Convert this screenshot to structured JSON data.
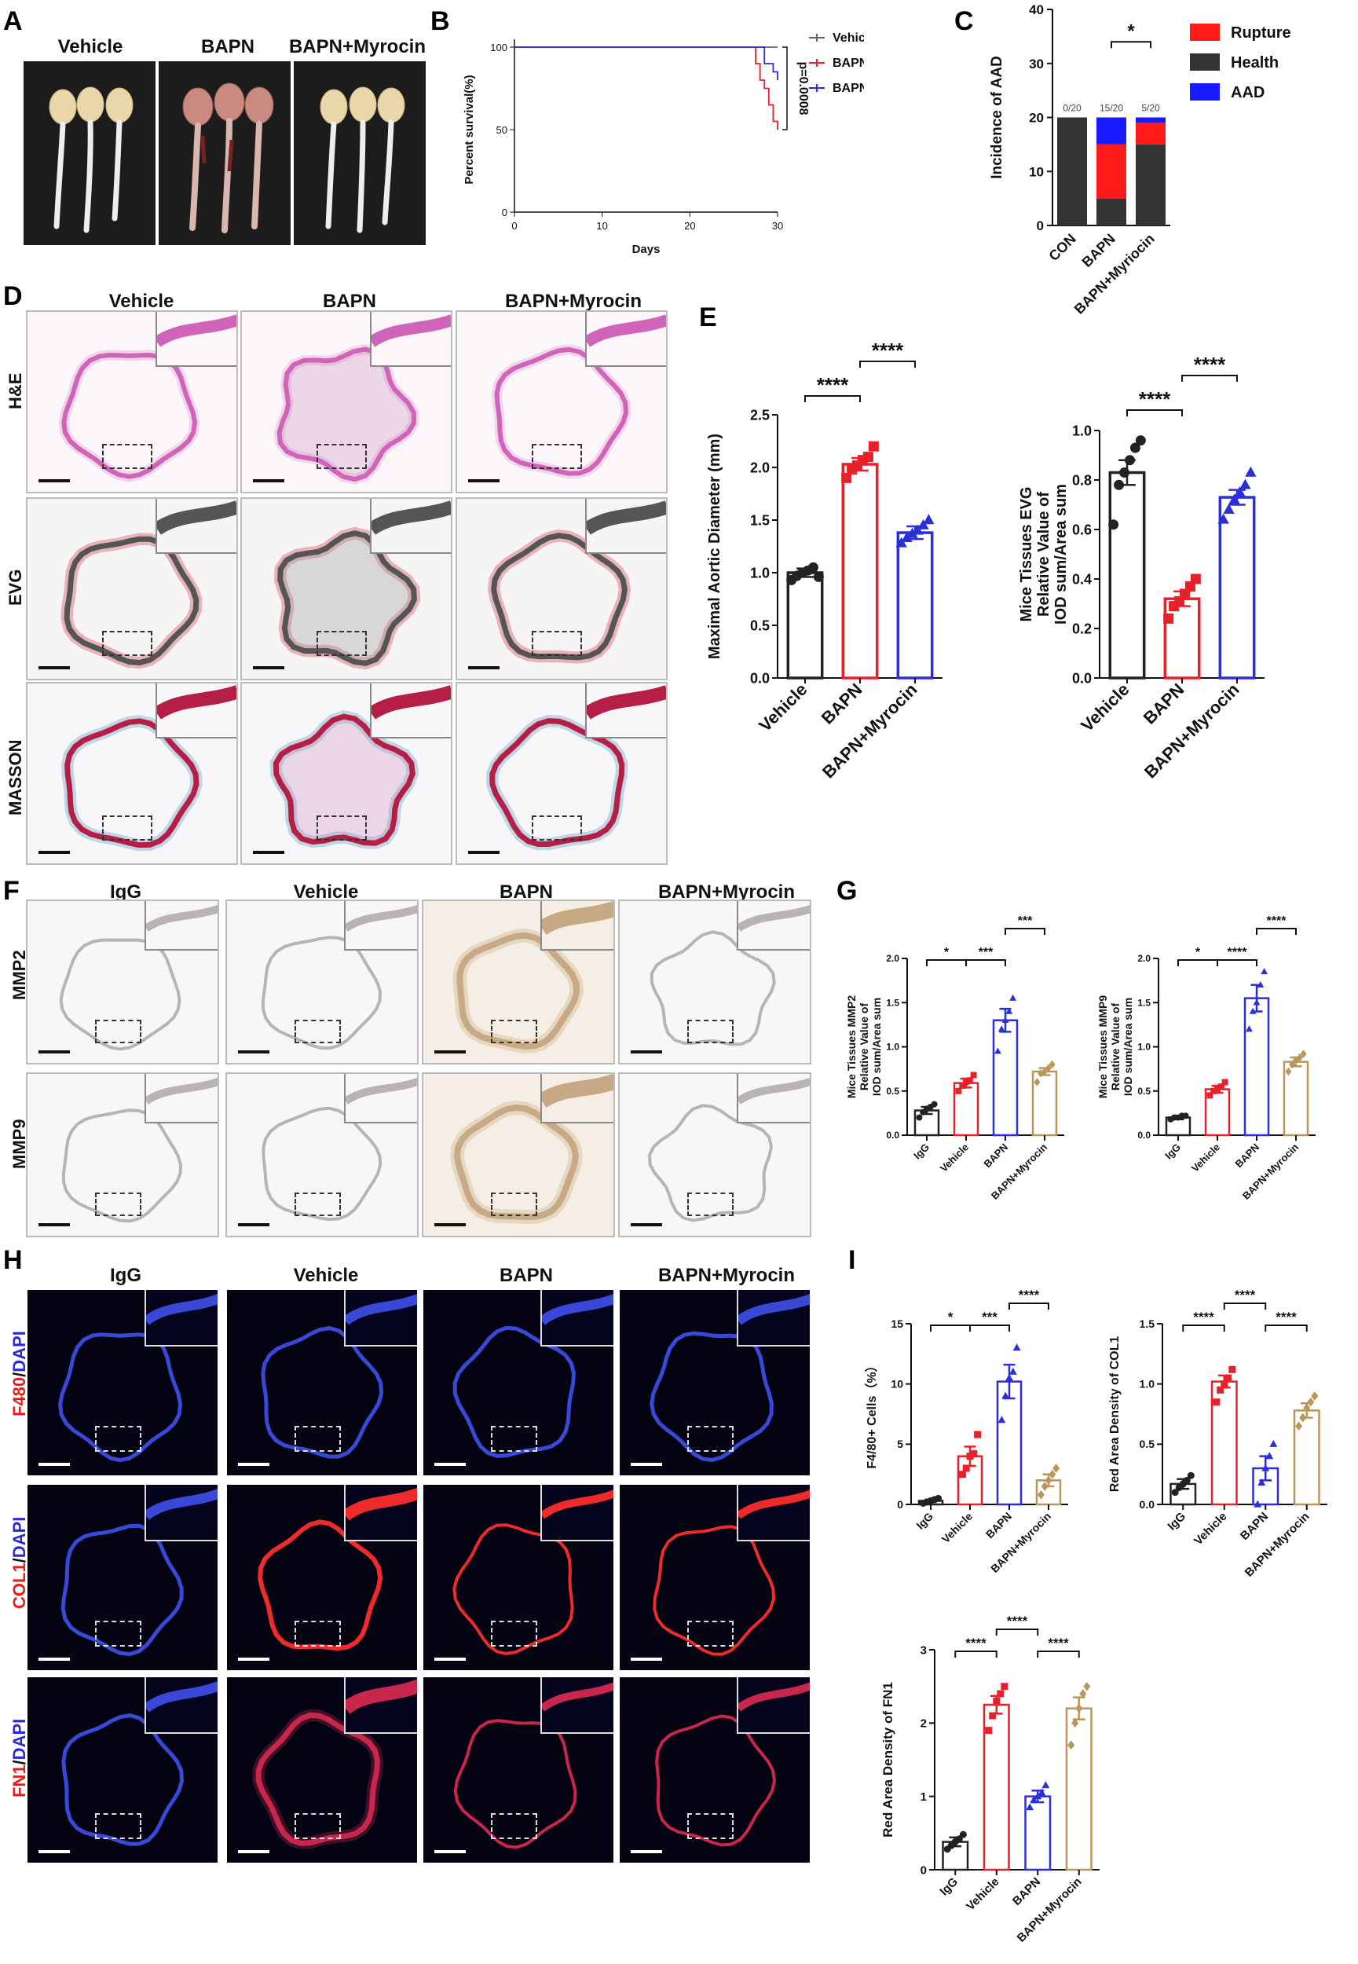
{
  "labels": {
    "A": "A",
    "B": "B",
    "C": "C",
    "D": "D",
    "E": "E",
    "F": "F",
    "G": "G",
    "H": "H",
    "I": "I"
  },
  "colors": {
    "vehicle": "#e8202a",
    "bapn": "#2b2fd6",
    "myrocin": "#b9965a",
    "igg": "#222222",
    "rupture": "#ff1a1a",
    "health": "#333333",
    "aad": "#1a1aff"
  },
  "panelA": {
    "groups": [
      "Vehicle",
      "BAPN",
      "BAPN+Myrocin"
    ]
  },
  "panelD": {
    "columns": [
      "Vehicle",
      "BAPN",
      "BAPN+Myrocin"
    ],
    "rows": [
      "H&E",
      "EVG",
      "MASSON"
    ]
  },
  "panelF": {
    "columns": [
      "IgG",
      "Vehicle",
      "BAPN",
      "BAPN+Myrocin"
    ],
    "rows": [
      "MMP2",
      "MMP9"
    ]
  },
  "panelH": {
    "columns": [
      "IgG",
      "Vehicle",
      "BAPN",
      "BAPN+Myrocin"
    ],
    "rows": [
      {
        "marker": "F480",
        "sep": "/",
        "dapi": "DAPI"
      },
      {
        "marker": "COL1",
        "sep": "/",
        "dapi": "DAPI"
      },
      {
        "marker": "FN1",
        "sep": "/",
        "dapi": "DAPI"
      }
    ]
  },
  "chart_data": [
    {
      "id": "B",
      "type": "line",
      "xlabel": "Days",
      "ylabel": "Percent survival(%)",
      "xlim": [
        0,
        30
      ],
      "ylim": [
        0,
        100
      ],
      "xticks": [
        0,
        10,
        20,
        30
      ],
      "yticks": [
        0,
        50,
        100
      ],
      "series": [
        {
          "name": "Vehicle",
          "color": "#666666",
          "x": [
            0,
            30
          ],
          "y": [
            100,
            100
          ]
        },
        {
          "name": "BAPN",
          "color": "#e8202a",
          "x": [
            0,
            27,
            27.5,
            28,
            28.5,
            29,
            29.5,
            30
          ],
          "y": [
            100,
            100,
            90,
            80,
            75,
            65,
            55,
            50
          ]
        },
        {
          "name": "BAPN+Myrocin",
          "color": "#2b2fd6",
          "x": [
            0,
            28,
            28.5,
            29.5,
            30
          ],
          "y": [
            100,
            100,
            90,
            85,
            80
          ]
        }
      ],
      "annotation": "p=0.0008"
    },
    {
      "id": "C",
      "type": "bar",
      "stacked": true,
      "ylabel": "Incidence of AAD",
      "ylim": [
        0,
        40
      ],
      "yticks": [
        0,
        10,
        20,
        30,
        40
      ],
      "categories": [
        "CON",
        "BAPN",
        "BAPN+Myriocin"
      ],
      "series": [
        {
          "name": "Health",
          "color": "#333333",
          "values": [
            20,
            5,
            15
          ]
        },
        {
          "name": "Rupture",
          "color": "#ff1a1a",
          "values": [
            0,
            10,
            4
          ]
        },
        {
          "name": "AAD",
          "color": "#1a1aff",
          "values": [
            0,
            5,
            1
          ]
        }
      ],
      "toplabels": [
        "0/20",
        "15/20",
        "5/20"
      ],
      "sig": [
        {
          "from": 1,
          "to": 2,
          "text": "*"
        }
      ]
    },
    {
      "id": "E1",
      "type": "bar",
      "ylabel": "Maximal Aortic Diameter (mm)",
      "ylim": [
        0,
        2.5
      ],
      "yticks": [
        0,
        0.5,
        1.0,
        1.5,
        2.0,
        2.5
      ],
      "categories": [
        "Vehicle",
        "BAPN",
        "BAPN+Myrocin"
      ],
      "values": [
        1.0,
        2.03,
        1.38
      ],
      "errors": [
        0.04,
        0.06,
        0.06
      ],
      "points": [
        [
          0.93,
          0.97,
          1.0,
          1.02,
          1.05,
          0.96
        ],
        [
          1.9,
          1.98,
          2.02,
          2.07,
          2.1,
          2.2
        ],
        [
          1.28,
          1.33,
          1.37,
          1.4,
          1.45,
          1.5
        ]
      ],
      "sig": [
        {
          "from": 0,
          "to": 1,
          "text": "****"
        },
        {
          "from": 1,
          "to": 2,
          "text": "****"
        }
      ]
    },
    {
      "id": "E2",
      "type": "bar",
      "ylabel": "Mice Tissues EVG Relative Value of IOD sum/Area sum",
      "ylim": [
        0,
        1.0
      ],
      "yticks": [
        0.0,
        0.2,
        0.4,
        0.6,
        0.8,
        1.0
      ],
      "categories": [
        "Vehicle",
        "BAPN",
        "BAPN+Myrocin"
      ],
      "values": [
        0.83,
        0.32,
        0.73
      ],
      "errors": [
        0.05,
        0.03,
        0.03
      ],
      "points": [
        [
          0.62,
          0.78,
          0.83,
          0.88,
          0.93,
          0.96
        ],
        [
          0.24,
          0.29,
          0.31,
          0.34,
          0.37,
          0.4
        ],
        [
          0.64,
          0.68,
          0.72,
          0.75,
          0.78,
          0.83
        ]
      ],
      "sig": [
        {
          "from": 0,
          "to": 1,
          "text": "****"
        },
        {
          "from": 1,
          "to": 2,
          "text": "****"
        }
      ]
    },
    {
      "id": "G1",
      "type": "bar",
      "ylabel": "Mice Tissues MMP2 Relative Value of IOD sum/Area sum",
      "ylim": [
        0,
        2.0
      ],
      "yticks": [
        0.0,
        0.5,
        1.0,
        1.5,
        2.0
      ],
      "categories": [
        "IgG",
        "Vehicle",
        "BAPN",
        "BAPN+Myrocin"
      ],
      "values": [
        0.28,
        0.59,
        1.3,
        0.72
      ],
      "errors": [
        0.04,
        0.05,
        0.13,
        0.04
      ],
      "points": [
        [
          0.2,
          0.26,
          0.3,
          0.32,
          0.35
        ],
        [
          0.5,
          0.56,
          0.6,
          0.62,
          0.68
        ],
        [
          0.95,
          1.2,
          1.3,
          1.4,
          1.55
        ],
        [
          0.6,
          0.7,
          0.72,
          0.76,
          0.8
        ]
      ],
      "sig": [
        {
          "from": 0,
          "to": 1,
          "text": "*"
        },
        {
          "from": 1,
          "to": 2,
          "text": "***"
        },
        {
          "from": 2,
          "to": 3,
          "text": "***"
        }
      ]
    },
    {
      "id": "G2",
      "type": "bar",
      "ylabel": "Mice Tissues MMP9 Relative Value of IOD sum/Area sum",
      "ylim": [
        0,
        2.0
      ],
      "yticks": [
        0.0,
        0.5,
        1.0,
        1.5,
        2.0
      ],
      "categories": [
        "IgG",
        "Vehicle",
        "BAPN",
        "BAPN+Myrocin"
      ],
      "values": [
        0.2,
        0.52,
        1.55,
        0.83
      ],
      "errors": [
        0.02,
        0.04,
        0.15,
        0.05
      ],
      "points": [
        [
          0.18,
          0.2,
          0.2,
          0.22,
          0.22
        ],
        [
          0.45,
          0.5,
          0.52,
          0.55,
          0.6
        ],
        [
          1.2,
          1.4,
          1.5,
          1.7,
          1.85
        ],
        [
          0.72,
          0.8,
          0.85,
          0.88,
          0.92
        ]
      ],
      "sig": [
        {
          "from": 0,
          "to": 1,
          "text": "*"
        },
        {
          "from": 1,
          "to": 2,
          "text": "****"
        },
        {
          "from": 2,
          "to": 3,
          "text": "****"
        }
      ]
    },
    {
      "id": "I1",
      "type": "bar",
      "ylabel": "F4/80+ Cells（%）",
      "ylim": [
        0,
        15
      ],
      "yticks": [
        0,
        5,
        10,
        15
      ],
      "categories": [
        "IgG",
        "Vehicle",
        "BAPN",
        "BAPN+Myrocin"
      ],
      "values": [
        0.3,
        4.0,
        10.2,
        2.0
      ],
      "errors": [
        0.1,
        0.8,
        1.4,
        0.5
      ],
      "points": [
        [
          0.1,
          0.2,
          0.3,
          0.4,
          0.5
        ],
        [
          2.5,
          3.0,
          4.0,
          4.2,
          5.8
        ],
        [
          7.0,
          9.0,
          10.5,
          11.0,
          13.0
        ],
        [
          0.8,
          1.5,
          2.0,
          2.5,
          3.0
        ]
      ],
      "sig": [
        {
          "from": 0,
          "to": 1,
          "text": "*"
        },
        {
          "from": 1,
          "to": 2,
          "text": "***"
        },
        {
          "from": 2,
          "to": 3,
          "text": "****"
        }
      ]
    },
    {
      "id": "I2",
      "type": "bar",
      "ylabel": "Red Area Density of COL1",
      "ylim": [
        0,
        1.5
      ],
      "yticks": [
        0.0,
        0.5,
        1.0,
        1.5
      ],
      "categories": [
        "IgG",
        "Vehicle",
        "BAPN",
        "BAPN+Myrocin"
      ],
      "values": [
        0.17,
        1.02,
        0.3,
        0.78
      ],
      "errors": [
        0.04,
        0.05,
        0.1,
        0.06
      ],
      "points": [
        [
          0.1,
          0.14,
          0.17,
          0.2,
          0.24
        ],
        [
          0.85,
          0.95,
          1.0,
          1.05,
          1.12
        ],
        [
          0.0,
          0.18,
          0.3,
          0.4,
          0.5
        ],
        [
          0.65,
          0.72,
          0.8,
          0.85,
          0.9
        ]
      ],
      "sig": [
        {
          "from": 0,
          "to": 1,
          "text": "****"
        },
        {
          "from": 1,
          "to": 2,
          "text": "****"
        },
        {
          "from": 2,
          "to": 3,
          "text": "****"
        }
      ]
    },
    {
      "id": "I3",
      "type": "bar",
      "ylabel": "Red Area Density of FN1",
      "ylim": [
        0,
        3
      ],
      "yticks": [
        0,
        1,
        2,
        3
      ],
      "categories": [
        "IgG",
        "Vehicle",
        "BAPN",
        "BAPN+Myrocin"
      ],
      "values": [
        0.38,
        2.25,
        1.0,
        2.2
      ],
      "errors": [
        0.06,
        0.12,
        0.08,
        0.15
      ],
      "points": [
        [
          0.28,
          0.33,
          0.38,
          0.42,
          0.48
        ],
        [
          1.9,
          2.1,
          2.3,
          2.4,
          2.5
        ],
        [
          0.85,
          0.95,
          1.0,
          1.05,
          1.15
        ],
        [
          1.7,
          2.0,
          2.2,
          2.4,
          2.5
        ]
      ],
      "sig": [
        {
          "from": 0,
          "to": 1,
          "text": "****"
        },
        {
          "from": 1,
          "to": 2,
          "text": "****"
        },
        {
          "from": 2,
          "to": 3,
          "text": "****"
        }
      ]
    }
  ]
}
